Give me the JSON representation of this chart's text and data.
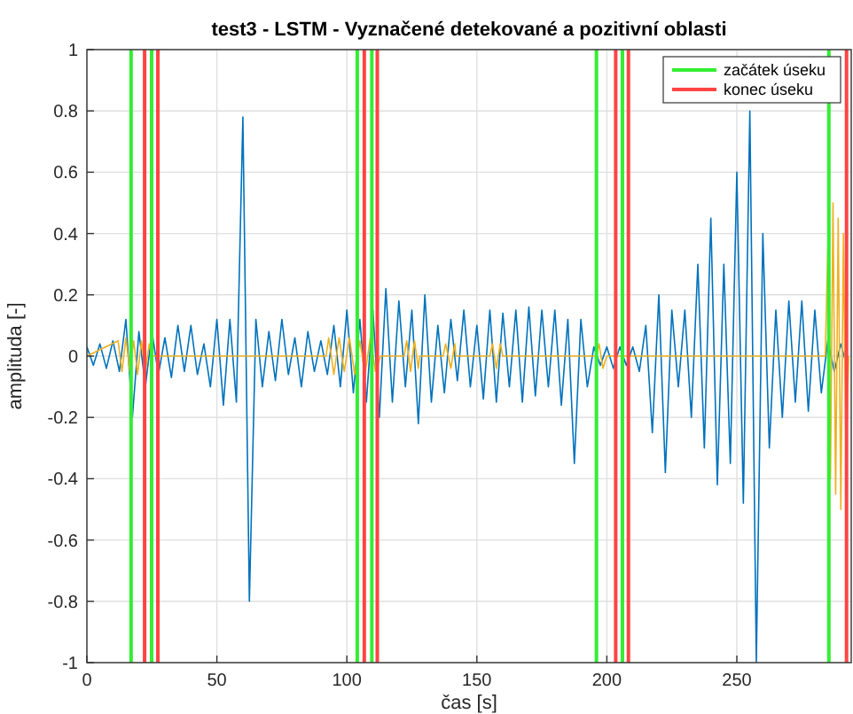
{
  "chart_data": {
    "type": "line",
    "title": "test3 - LSTM - Vyznačené detekované a pozitivní oblasti",
    "xlabel": "čas [s]",
    "ylabel": "amplituda [-]",
    "xlim": [
      0,
      294
    ],
    "xticks": [
      0,
      50,
      100,
      150,
      200,
      250
    ],
    "ylim": [
      -1,
      1
    ],
    "yticks": [
      -1,
      -0.8,
      -0.6,
      -0.4,
      -0.2,
      0,
      0.2,
      0.4,
      0.6,
      0.8,
      1
    ],
    "grid": true,
    "legend": "top right",
    "x": [
      0,
      2.5,
      5,
      7.5,
      10,
      12.5,
      15,
      17.5,
      20,
      22.5,
      25,
      27.5,
      30,
      32.5,
      35,
      37.5,
      40,
      42.5,
      45,
      47.5,
      50,
      52.5,
      55,
      57.5,
      60,
      62.5,
      65,
      67.5,
      70,
      72.5,
      75,
      77.5,
      80,
      82.5,
      85,
      87.5,
      90,
      92.5,
      95,
      97.5,
      100,
      102.5,
      105,
      107.5,
      110,
      112.5,
      115,
      117.5,
      120,
      122.5,
      125,
      127.5,
      130,
      132.5,
      135,
      137.5,
      140,
      142.5,
      145,
      147.5,
      150,
      152.5,
      155,
      157.5,
      160,
      162.5,
      165,
      167.5,
      170,
      172.5,
      175,
      177.5,
      180,
      182.5,
      185,
      187.5,
      190,
      192.5,
      195,
      197.5,
      200,
      202.5,
      205,
      207.5,
      210,
      212.5,
      215,
      217.5,
      220,
      222.5,
      225,
      227.5,
      230,
      232.5,
      235,
      237.5,
      240,
      242.5,
      245,
      247.5,
      250,
      252.5,
      255,
      257.5,
      260,
      262.5,
      265,
      267.5,
      270,
      272.5,
      275,
      277.5,
      280,
      282.5,
      285,
      287.5,
      290,
      292.5
    ],
    "series": [
      {
        "color": "#0072bd",
        "values": [
          0.03,
          -0.03,
          0.04,
          -0.04,
          0.05,
          -0.05,
          0.12,
          -0.2,
          0.08,
          -0.1,
          0.08,
          -0.06,
          0.06,
          -0.07,
          0.1,
          -0.05,
          0.1,
          -0.06,
          0.04,
          -0.1,
          0.12,
          -0.16,
          0.12,
          -0.15,
          0.78,
          -0.8,
          0.12,
          -0.1,
          0.08,
          -0.08,
          0.12,
          -0.06,
          0.06,
          -0.1,
          0.08,
          -0.05,
          0.05,
          -0.06,
          0.1,
          -0.1,
          0.15,
          -0.12,
          0.12,
          -0.15,
          0.15,
          -0.2,
          0.22,
          -0.15,
          0.18,
          -0.1,
          0.15,
          -0.22,
          0.2,
          -0.15,
          0.1,
          -0.12,
          0.12,
          -0.08,
          0.15,
          -0.1,
          0.1,
          -0.14,
          0.15,
          -0.15,
          0.14,
          -0.1,
          0.15,
          -0.15,
          0.16,
          -0.13,
          0.15,
          -0.1,
          0.15,
          -0.16,
          0.12,
          -0.35,
          0.12,
          -0.1,
          0.03,
          -0.03,
          0.03,
          -0.04,
          0.03,
          -0.03,
          0.03,
          -0.05,
          0.1,
          -0.25,
          0.2,
          -0.38,
          0.15,
          -0.1,
          0.15,
          -0.2,
          0.3,
          -0.3,
          0.45,
          -0.42,
          0.3,
          -0.35,
          0.6,
          -0.48,
          0.8,
          -1,
          0.4,
          -0.3,
          0.15,
          -0.2,
          0.18,
          -0.15,
          0.18,
          -0.18,
          0.15,
          -0.12,
          0.05,
          -0.05,
          0.04,
          -0.04
        ]
      },
      {
        "color": "#edb120",
        "x": [
          0,
          12,
          13.5,
          15,
          16.5,
          18,
          19.5,
          21,
          22.5,
          24,
          25,
          92,
          93,
          95,
          97,
          99,
          101,
          103,
          105,
          107,
          109,
          111,
          113,
          122,
          123,
          124.5,
          126,
          127.5,
          128,
          137,
          138,
          140,
          141.5,
          142,
          155,
          156,
          157.5,
          159,
          160,
          196,
          197,
          198.5,
          200,
          284,
          285,
          286,
          287,
          288,
          289,
          290,
          291,
          292,
          293
        ],
        "values": [
          0,
          0.05,
          -0.05,
          0.06,
          -0.05,
          0.05,
          -0.06,
          0.05,
          -0.05,
          0.04,
          0,
          0,
          0.06,
          -0.06,
          0.06,
          -0.05,
          0.06,
          -0.06,
          0.05,
          -0.06,
          0.06,
          -0.05,
          0,
          0,
          0.05,
          -0.05,
          0.05,
          -0.04,
          0,
          0,
          0.04,
          -0.04,
          0.04,
          0,
          0,
          0.04,
          -0.04,
          0.04,
          0,
          0,
          0.04,
          -0.04,
          0,
          0,
          0.35,
          -0.4,
          0.5,
          -0.45,
          0.45,
          -0.5,
          0.4,
          -0.35,
          0
        ]
      },
      {
        "name": "začátek úseku",
        "color": "#33ee33",
        "x": [
          17,
          17,
          null,
          24.9,
          24.9,
          null,
          104,
          104,
          null,
          109.6,
          109.6,
          null,
          196,
          196,
          null,
          206,
          206,
          null,
          285.4,
          285.4
        ],
        "values": [
          -1,
          1,
          null,
          -1,
          1,
          null,
          -1,
          1,
          null,
          -1,
          1,
          null,
          -1,
          1,
          null,
          -1,
          1,
          null,
          -1,
          1
        ]
      },
      {
        "name": "konec úseku",
        "color": "#ff4444",
        "x": [
          22.2,
          22.2,
          null,
          27.3,
          27.3,
          null,
          106.7,
          106.7,
          null,
          111.7,
          111.7,
          null,
          203.4,
          203.4,
          null,
          208.3,
          208.3,
          null,
          292.2,
          292.2
        ],
        "values": [
          -1,
          1,
          null,
          -1,
          1,
          null,
          -1,
          1,
          null,
          -1,
          1,
          null,
          -1,
          1,
          null,
          -1,
          1,
          null,
          -1,
          1
        ]
      }
    ]
  }
}
